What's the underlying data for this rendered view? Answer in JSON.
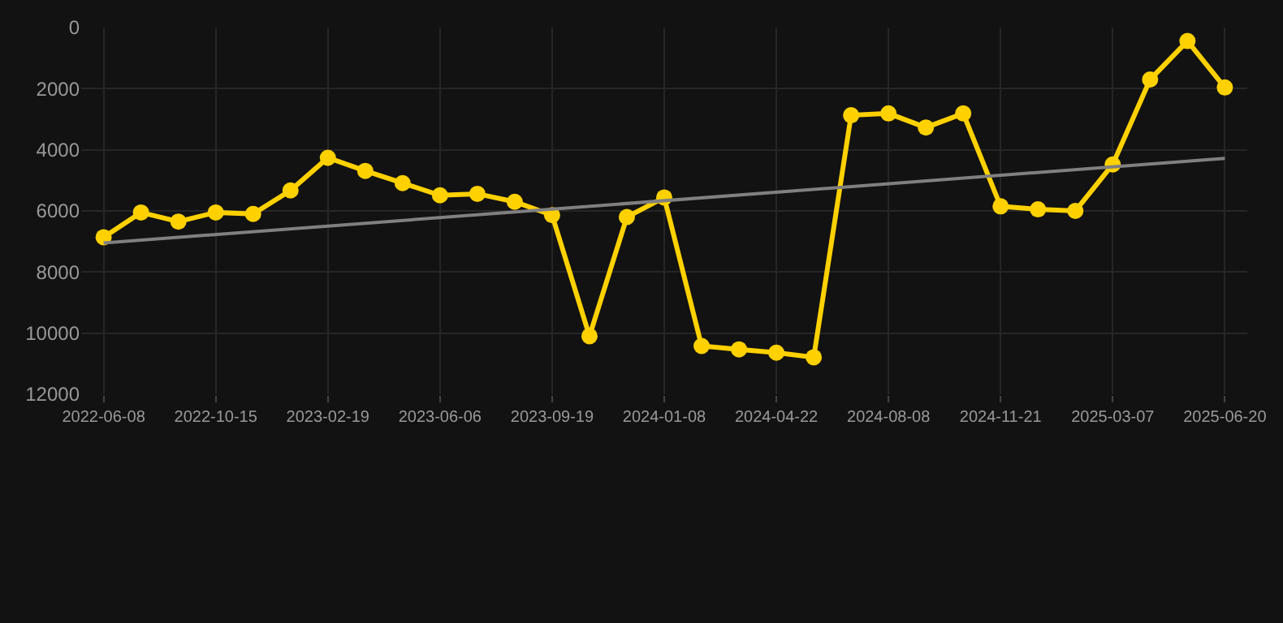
{
  "chart_data": {
    "type": "line",
    "categories": [
      "2022-06-08",
      null,
      null,
      "2022-10-15",
      null,
      null,
      "2023-02-19",
      null,
      null,
      "2023-06-06",
      null,
      null,
      "2023-09-19",
      null,
      null,
      "2024-01-08",
      null,
      null,
      "2024-04-22",
      null,
      null,
      "2024-08-08",
      null,
      null,
      "2024-11-21",
      null,
      null,
      "2025-03-07",
      null,
      null,
      "2025-06-20"
    ],
    "series": [
      {
        "color": "#ffd100",
        "marker": "circle",
        "values": [
          6860,
          6050,
          6350,
          6050,
          6100,
          5330,
          4260,
          4690,
          5090,
          5490,
          5440,
          5700,
          6140,
          10100,
          6200,
          5560,
          10420,
          10530,
          10640,
          10790,
          2870,
          2810,
          3270,
          2810,
          5850,
          5950,
          6000,
          4480,
          1700,
          440,
          1960
        ]
      },
      {
        "type": "line",
        "color": "#808080",
        "marker": "none",
        "values": [
          7050,
          null,
          null,
          null,
          null,
          null,
          null,
          null,
          null,
          null,
          null,
          null,
          null,
          null,
          null,
          null,
          null,
          null,
          null,
          null,
          null,
          null,
          null,
          null,
          null,
          null,
          null,
          null,
          null,
          null,
          4280
        ]
      }
    ],
    "ylim": [
      12000,
      0
    ],
    "yticks": [
      0,
      2000,
      4000,
      6000,
      8000,
      10000,
      12000
    ],
    "grid": true
  }
}
